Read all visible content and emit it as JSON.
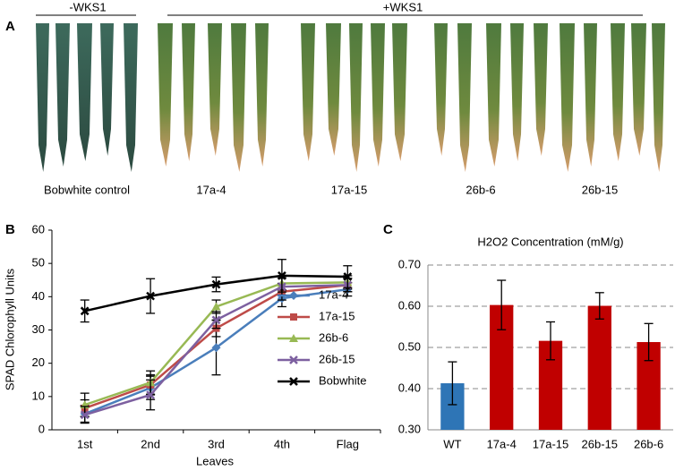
{
  "panel_a": {
    "label": "A",
    "groups": [
      "-WKS1",
      "+WKS1"
    ],
    "samples": [
      "Bobwhite control",
      "17a-4",
      "17a-15",
      "26b-6",
      "26b-15"
    ]
  },
  "chart_data": [
    {
      "type": "line",
      "panel_label": "B",
      "x_label": "Leaves",
      "y_label": "SPAD Chlorophyll Units",
      "categories": [
        "1st",
        "2nd",
        "3rd",
        "4th",
        "Flag"
      ],
      "ylim": [
        0,
        60
      ],
      "yticks": [
        0,
        10,
        20,
        30,
        40,
        50,
        60
      ],
      "grid": false,
      "legend": "lower right",
      "series": [
        {
          "name": "17a-4",
          "color": "#4a7ebb",
          "marker": "diamond",
          "values": [
            4.8,
            12.6,
            24.7,
            39.5,
            42.2
          ],
          "errors": [
            2.5,
            3.5,
            8.2,
            2.5,
            2
          ]
        },
        {
          "name": "17a-15",
          "color": "#be4b48",
          "marker": "square",
          "values": [
            6.5,
            13.5,
            30.5,
            41.5,
            43.5
          ],
          "errors": [
            2.5,
            3,
            2.5,
            2.5,
            2
          ]
        },
        {
          "name": "26b-6",
          "color": "#98b954",
          "marker": "triangle",
          "values": [
            7.5,
            14.2,
            37,
            44,
            44.3
          ],
          "errors": [
            3.5,
            3.5,
            2,
            2,
            2
          ]
        },
        {
          "name": "26b-15",
          "color": "#7d60a0",
          "marker": "x",
          "values": [
            4.5,
            10.5,
            33,
            43,
            43.5
          ],
          "errors": [
            2.5,
            4.5,
            2.5,
            2.5,
            2
          ]
        },
        {
          "name": "Bobwhite",
          "color": "#000000",
          "marker": "x",
          "values": [
            35.7,
            40.2,
            43.7,
            46.3,
            46
          ],
          "errors": [
            3.3,
            5.2,
            2.2,
            4.9,
            3.3
          ]
        }
      ]
    },
    {
      "type": "bar",
      "panel_label": "C",
      "title": "H2O2 Concentration (mM/g)",
      "categories": [
        "WT",
        "17a-4",
        "17a-15",
        "26b-15",
        "26b-6"
      ],
      "values": [
        0.413,
        0.603,
        0.516,
        0.601,
        0.513
      ],
      "errors": [
        0.052,
        0.06,
        0.046,
        0.032,
        0.045
      ],
      "colors": [
        "#2e75b6",
        "#c00000",
        "#c00000",
        "#c00000",
        "#c00000"
      ],
      "ylim": [
        0.3,
        0.7
      ],
      "yticks": [
        {
          "value": 0.3,
          "label": "0.30"
        },
        {
          "value": 0.4,
          "label": "0.40"
        },
        {
          "value": 0.5,
          "label": "0.50"
        },
        {
          "value": 0.6,
          "label": "0.60"
        },
        {
          "value": 0.7,
          "label": "0.70"
        }
      ],
      "grid": true
    }
  ]
}
